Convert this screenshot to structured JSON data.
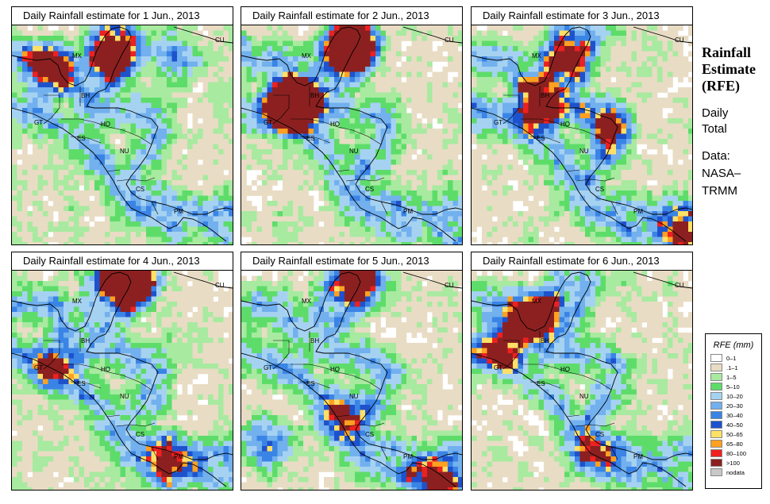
{
  "panels": [
    {
      "title": "Daily Rainfall estimate for  1 Jun., 2013",
      "seed": 11,
      "hot": [
        [
          45,
          55,
          1.4
        ],
        [
          130,
          35,
          1.2
        ],
        [
          205,
          40,
          1.0
        ]
      ]
    },
    {
      "title": "Daily Rainfall estimate for  2 Jun., 2013",
      "seed": 23,
      "hot": [
        [
          140,
          30,
          2.2
        ],
        [
          60,
          100,
          1.6
        ],
        [
          75,
          100,
          1.2
        ]
      ]
    },
    {
      "title": "Daily Rainfall estimate for  3 Jun., 2013",
      "seed": 37,
      "hot": [
        [
          85,
          100,
          1.5
        ],
        [
          170,
          130,
          1.0
        ],
        [
          120,
          40,
          1.0
        ],
        [
          265,
          265,
          1.0
        ]
      ]
    },
    {
      "title": "Daily Rainfall estimate for  4 Jun., 2013",
      "seed": 41,
      "hot": [
        [
          150,
          15,
          2.4
        ],
        [
          50,
          120,
          1.0
        ],
        [
          200,
          240,
          1.0
        ]
      ]
    },
    {
      "title": "Daily Rainfall estimate for  5 Jun., 2013",
      "seed": 53,
      "hot": [
        [
          150,
          15,
          1.4
        ],
        [
          30,
          220,
          1.2
        ],
        [
          240,
          270,
          1.2
        ],
        [
          130,
          180,
          0.9
        ]
      ]
    },
    {
      "title": "Daily Rainfall estimate for  6 Jun., 2013",
      "seed": 67,
      "hot": [
        [
          80,
          55,
          1.5
        ],
        [
          40,
          90,
          1.2
        ],
        [
          150,
          230,
          0.8
        ]
      ]
    }
  ],
  "country_labels": [
    "MX",
    "BH",
    "GT",
    "HO",
    "ES",
    "NU",
    "CS",
    "PM",
    "CU"
  ],
  "side": {
    "title_lines": [
      "Rainfall",
      "Estimate",
      "(RFE)"
    ],
    "period_lines": [
      "Daily",
      "Total"
    ],
    "data_lines": [
      "Data:",
      "NASA–",
      "TRMM"
    ]
  },
  "legend": {
    "title": "RFE (mm)",
    "items": [
      {
        "label": "0–1",
        "color": "#ffffff"
      },
      {
        "label": ".1–1",
        "color": "#e8dcc4"
      },
      {
        "label": "1–5",
        "color": "#a8eaa0"
      },
      {
        "label": "5–10",
        "color": "#5edc6a"
      },
      {
        "label": "10–20",
        "color": "#a6d2f2"
      },
      {
        "label": "20–30",
        "color": "#72b0ee"
      },
      {
        "label": "30–40",
        "color": "#3a84e6"
      },
      {
        "label": "40–50",
        "color": "#1e52cc"
      },
      {
        "label": "50–65",
        "color": "#ffe066"
      },
      {
        "label": "65–80",
        "color": "#ffa020"
      },
      {
        "label": "80–100",
        "color": "#ee2020"
      },
      {
        "label": ">100",
        "color": "#8c2020"
      },
      {
        "label": "nodata",
        "color": "#c8c8c8"
      }
    ]
  }
}
